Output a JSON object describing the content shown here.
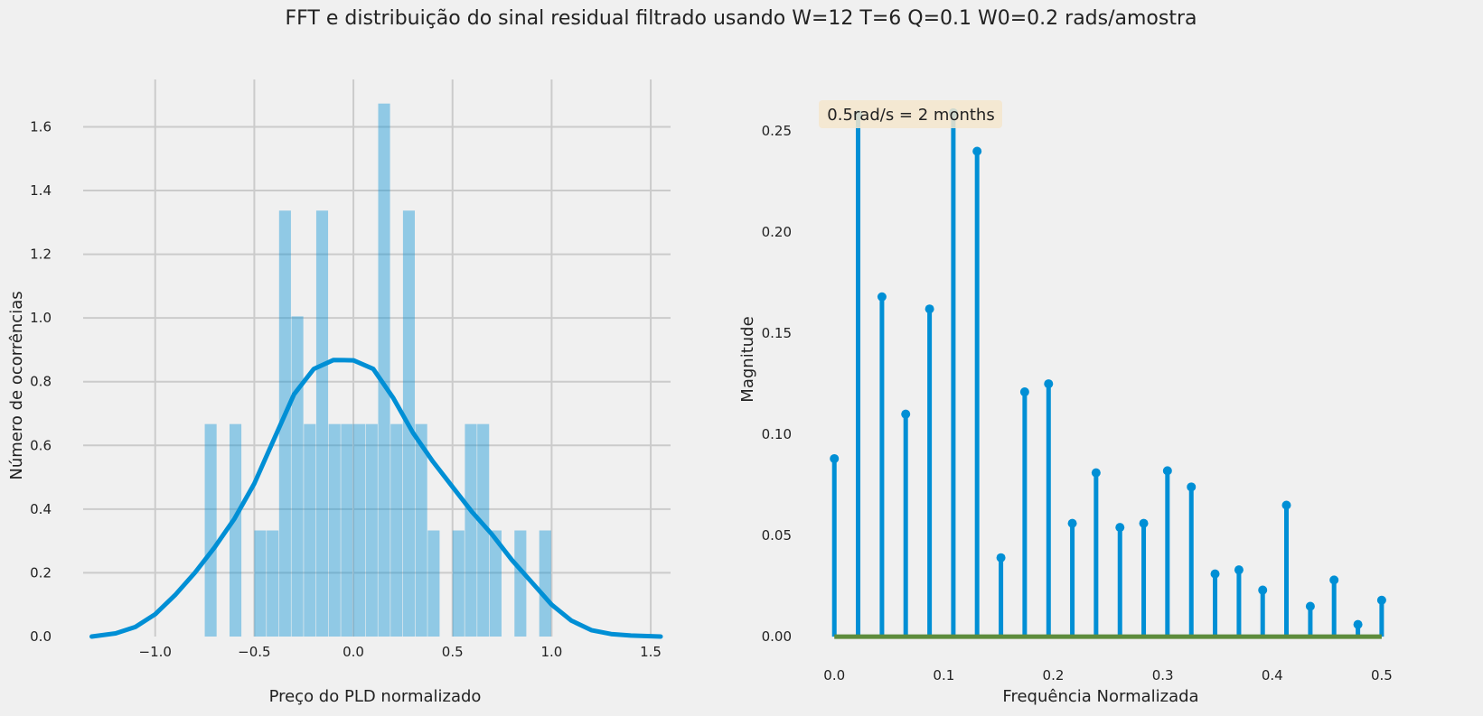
{
  "figure_title": "FFT e distribuição do sinal residual filtrado usando W=12 T=6 Q=0.1 W0=0.2 rads/amostra",
  "colors": {
    "background": "#f0f0f0",
    "grid": "#cbcbcb",
    "hist_fill": "#008fd5",
    "kde_line": "#008fd5",
    "stem": "#008fd5",
    "baseline": "#5d8c3c",
    "annotation_box": "#f5e6cc"
  },
  "chart_data": [
    {
      "type": "bar",
      "subtype": "histogram-with-kde",
      "xlabel": "Preço do PLD normalizado",
      "ylabel": "Número de ocorrências",
      "xlim": [
        -1.4,
        1.6
      ],
      "ylim": [
        0,
        1.76
      ],
      "xticks": [
        -1.0,
        -0.5,
        0.0,
        0.5,
        1.0,
        1.5
      ],
      "xtick_labels": [
        "−1.0",
        "−0.5",
        "0.0",
        "0.5",
        "1.0",
        "1.5"
      ],
      "yticks": [
        0.0,
        0.2,
        0.4,
        0.6,
        0.8,
        1.0,
        1.2,
        1.4,
        1.6
      ],
      "ytick_labels": [
        "0.0",
        "0.2",
        "0.4",
        "0.6",
        "0.8",
        "1.0",
        "1.2",
        "1.4",
        "1.6"
      ],
      "grid": true,
      "bin_edges": [
        -0.75,
        -0.6875,
        -0.625,
        -0.5625,
        -0.5,
        -0.4375,
        -0.375,
        -0.3125,
        -0.25,
        -0.1875,
        -0.125,
        -0.0625,
        0.0,
        0.0625,
        0.125,
        0.1875,
        0.25,
        0.3125,
        0.375,
        0.4375,
        0.5,
        0.5625,
        0.625,
        0.6875,
        0.75,
        0.8125,
        0.875,
        0.9375,
        1.0
      ],
      "bar_heights": [
        0.667,
        0,
        0.667,
        0,
        0.333,
        0.333,
        1.337,
        1.005,
        0.667,
        1.337,
        0.667,
        0.667,
        0.667,
        0.667,
        1.673,
        0.667,
        1.337,
        0.667,
        0.333,
        0,
        0.333,
        0.667,
        0.667,
        0.333,
        0,
        0.333,
        0,
        0.333
      ],
      "kde": {
        "x": [
          -1.32,
          -1.2,
          -1.1,
          -1.0,
          -0.9,
          -0.8,
          -0.7,
          -0.6,
          -0.5,
          -0.4,
          -0.3,
          -0.2,
          -0.1,
          0.0,
          0.1,
          0.2,
          0.3,
          0.4,
          0.5,
          0.6,
          0.7,
          0.8,
          0.9,
          1.0,
          1.1,
          1.2,
          1.3,
          1.4,
          1.55
        ],
        "y": [
          0.0,
          0.01,
          0.03,
          0.07,
          0.13,
          0.2,
          0.28,
          0.37,
          0.48,
          0.62,
          0.76,
          0.84,
          0.868,
          0.867,
          0.84,
          0.75,
          0.64,
          0.55,
          0.47,
          0.39,
          0.32,
          0.24,
          0.17,
          0.1,
          0.05,
          0.02,
          0.008,
          0.003,
          0.0
        ]
      }
    },
    {
      "type": "scatter",
      "subtype": "stem",
      "xlabel": "Frequência Normalizada",
      "ylabel": "Magnitude",
      "xlim": [
        -0.02,
        0.51
      ],
      "ylim": [
        -0.008,
        0.267
      ],
      "xticks": [
        0.0,
        0.1,
        0.2,
        0.3,
        0.4,
        0.5
      ],
      "xtick_labels": [
        "0.0",
        "0.1",
        "0.2",
        "0.3",
        "0.4",
        "0.5"
      ],
      "yticks": [
        0.0,
        0.05,
        0.1,
        0.15,
        0.2,
        0.25
      ],
      "ytick_labels": [
        "0.00",
        "0.05",
        "0.10",
        "0.15",
        "0.20",
        "0.25"
      ],
      "grid": false,
      "annotation": "0.5rad/s = 2 months",
      "x": [
        0.0,
        0.0217,
        0.0435,
        0.0652,
        0.087,
        0.1087,
        0.1304,
        0.1522,
        0.1739,
        0.1957,
        0.2174,
        0.2391,
        0.2609,
        0.2826,
        0.3043,
        0.3261,
        0.3478,
        0.3696,
        0.3913,
        0.413,
        0.4348,
        0.4565,
        0.4783,
        0.5
      ],
      "y": [
        0.088,
        0.258,
        0.168,
        0.11,
        0.162,
        0.259,
        0.24,
        0.039,
        0.121,
        0.125,
        0.056,
        0.081,
        0.054,
        0.056,
        0.082,
        0.074,
        0.031,
        0.033,
        0.023,
        0.065,
        0.015,
        0.028,
        0.006,
        0.018
      ]
    }
  ]
}
